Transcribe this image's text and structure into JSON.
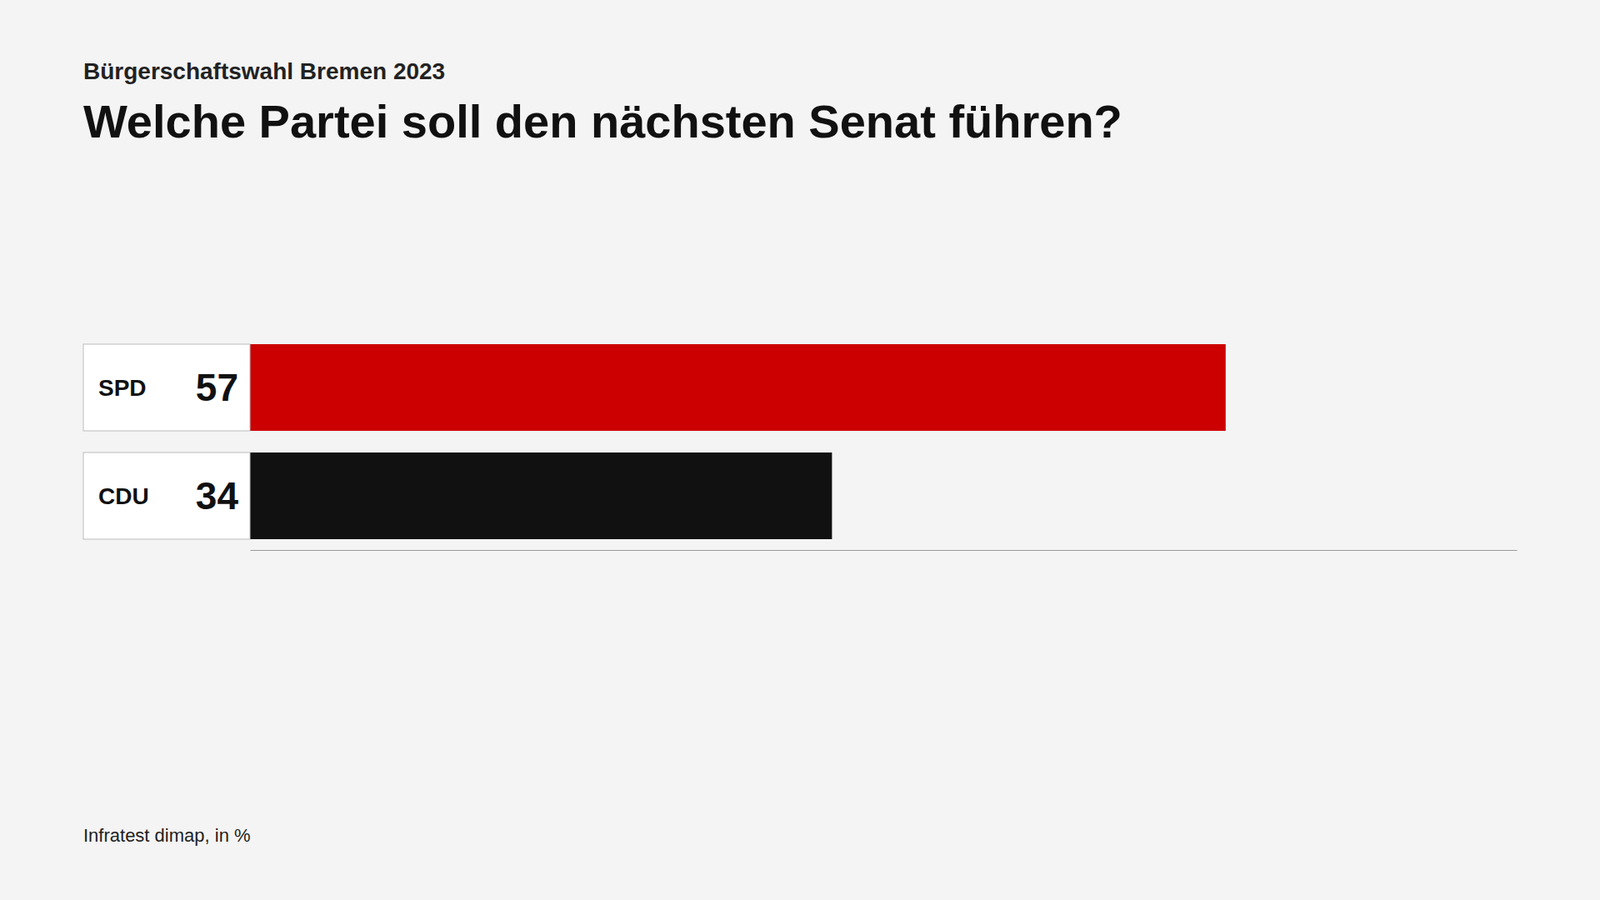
{
  "chart_data": {
    "type": "bar",
    "orientation": "horizontal",
    "subtitle": "Bürgerschaftswahl Bremen 2023",
    "title": "Welche Partei soll den nächsten Senat führen?",
    "source": "Infratest dimap, in %",
    "categories": [
      "SPD",
      "CDU"
    ],
    "values": [
      57,
      34
    ],
    "colors": [
      "#cc0000",
      "#111111"
    ],
    "xlim": [
      0,
      74
    ],
    "data_labels": true,
    "tick_labels": false
  }
}
